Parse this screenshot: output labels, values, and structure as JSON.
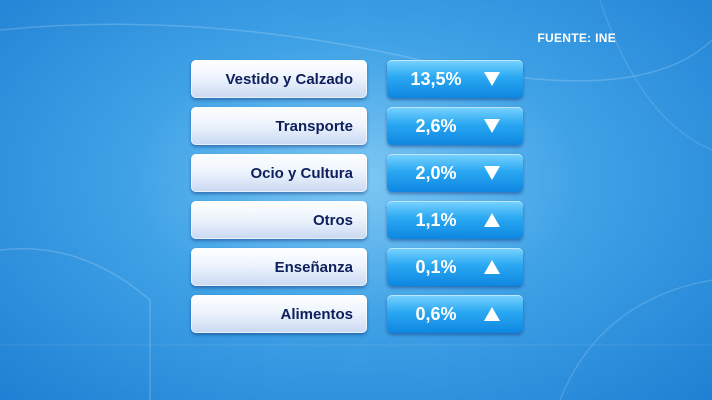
{
  "source": "FUENTE: INE",
  "chart_data": {
    "type": "table",
    "rows": [
      {
        "label": "Vestido y Calzado",
        "value": "13,5%",
        "direction": "down"
      },
      {
        "label": "Transporte",
        "value": "2,6%",
        "direction": "down"
      },
      {
        "label": "Ocio y Cultura",
        "value": "2,0%",
        "direction": "down"
      },
      {
        "label": "Otros",
        "value": "1,1%",
        "direction": "up"
      },
      {
        "label": "Enseñanza",
        "value": "0,1%",
        "direction": "up"
      },
      {
        "label": "Alimentos",
        "value": "0,6%",
        "direction": "up"
      }
    ]
  },
  "colors": {
    "label_text": "#0d1f5c",
    "value_box": "#1b97ea",
    "background": "#3fa2e6"
  },
  "icons": {
    "up": "triangle-up-icon",
    "down": "triangle-down-icon"
  }
}
